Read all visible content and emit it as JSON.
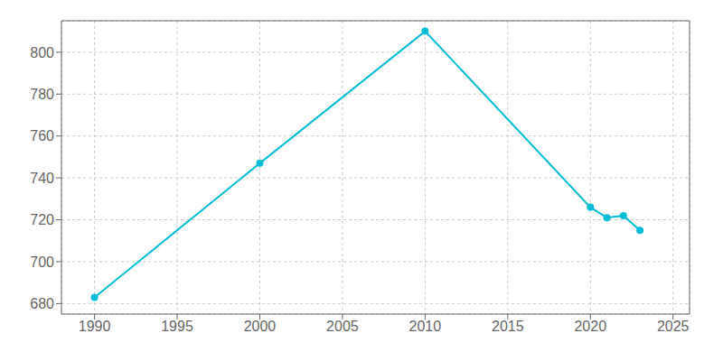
{
  "chart_data": {
    "type": "line",
    "x": [
      1990,
      2000,
      2010,
      2020,
      2021,
      2022,
      2023
    ],
    "values": [
      683,
      747,
      810,
      726,
      721,
      722,
      715
    ],
    "color": "#00bcd4",
    "marker": "circle",
    "xlim": [
      1988,
      2026
    ],
    "ylim": [
      675,
      815
    ],
    "xticks": [
      1990,
      1995,
      2000,
      2005,
      2010,
      2015,
      2020,
      2025
    ],
    "yticks": [
      680,
      700,
      720,
      740,
      760,
      780,
      800
    ],
    "grid": true
  }
}
